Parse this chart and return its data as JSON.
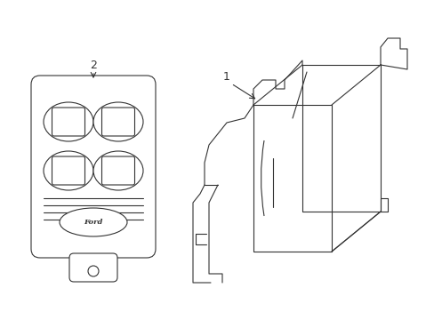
{
  "background_color": "#ffffff",
  "line_color": "#333333",
  "line_width": 0.8,
  "fig_width": 4.89,
  "fig_height": 3.6,
  "dpi": 100,
  "label_1": "1",
  "label_2": "2",
  "label_fontsize": 9
}
